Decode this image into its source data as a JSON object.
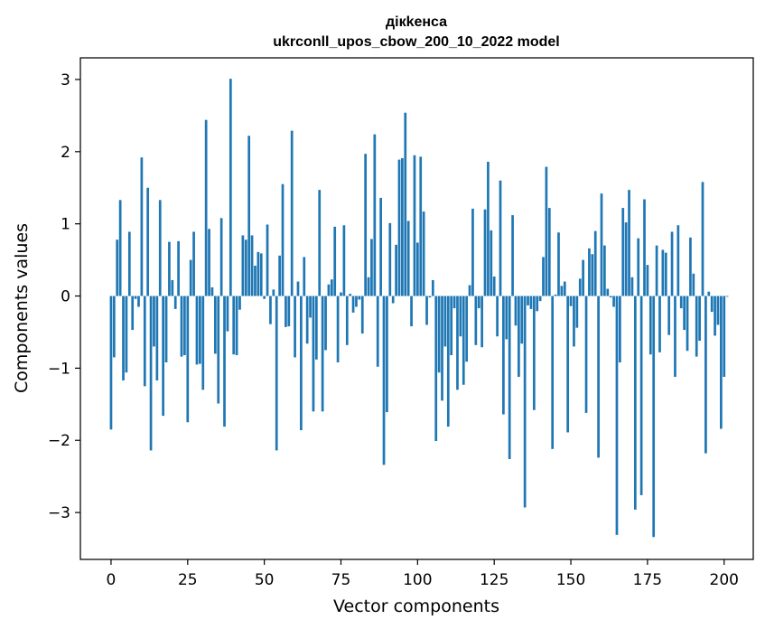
{
  "chart_data": {
    "type": "bar",
    "title": [
      "дікkенса",
      "ukrconll_upos_cbow_200_10_2022 model"
    ],
    "xlabel": "Vector components",
    "ylabel": "Components values",
    "xlim": [
      -10,
      209.5
    ],
    "ylim": [
      -3.65,
      3.3
    ],
    "xticks": [
      0,
      25,
      50,
      75,
      100,
      125,
      150,
      175,
      200
    ],
    "yticks": [
      -3,
      -2,
      -1,
      0,
      1,
      2,
      3
    ],
    "ytick_labels": [
      "−3",
      "−2",
      "−1",
      "0",
      "1",
      "2",
      "3"
    ],
    "grid": false,
    "bar_color": "#1f77b4",
    "values": [
      -1.85,
      -0.85,
      0.78,
      1.33,
      -1.17,
      -1.06,
      0.89,
      -0.47,
      -0.04,
      -0.15,
      1.92,
      -1.25,
      1.5,
      -2.14,
      -0.7,
      -1.17,
      1.33,
      -1.66,
      -0.92,
      0.75,
      0.22,
      -0.18,
      0.76,
      -0.84,
      -0.82,
      -1.75,
      0.5,
      0.89,
      -0.95,
      -0.94,
      -1.3,
      2.44,
      0.93,
      0.12,
      -0.8,
      -1.49,
      1.08,
      -1.81,
      -0.49,
      3.01,
      -0.81,
      -0.82,
      -0.19,
      0.84,
      0.78,
      2.22,
      0.84,
      0.42,
      0.61,
      0.59,
      -0.04,
      0.99,
      -0.39,
      0.09,
      -2.14,
      0.56,
      1.55,
      -0.43,
      -0.42,
      2.29,
      -0.85,
      0.2,
      -1.86,
      0.54,
      -0.66,
      -0.3,
      -1.6,
      -0.88,
      1.47,
      -1.6,
      -0.75,
      0.16,
      0.23,
      0.96,
      -0.92,
      0.05,
      0.98,
      -0.68,
      0.03,
      -0.23,
      -0.15,
      -0.05,
      -0.52,
      1.97,
      0.26,
      0.79,
      2.24,
      -0.98,
      1.36,
      -2.34,
      -1.61,
      1.01,
      -0.1,
      0.71,
      1.89,
      1.91,
      2.54,
      1.04,
      -0.42,
      1.95,
      0.74,
      1.93,
      1.17,
      -0.4,
      -0.02,
      0.22,
      -2.01,
      -1.06,
      -1.45,
      -0.7,
      -1.81,
      -0.82,
      -0.17,
      -1.3,
      -0.56,
      -1.23,
      -0.91,
      0.15,
      1.21,
      -0.68,
      -0.17,
      -0.71,
      1.2,
      1.86,
      0.91,
      0.27,
      -0.56,
      1.6,
      -1.64,
      -0.6,
      -2.26,
      1.12,
      -0.41,
      -1.12,
      -0.66,
      -2.93,
      -0.13,
      -0.18,
      -1.58,
      -0.21,
      -0.07,
      0.54,
      1.79,
      1.22,
      -2.12,
      0.02,
      0.88,
      0.14,
      0.2,
      -1.89,
      -0.14,
      -0.7,
      -0.44,
      0.24,
      0.5,
      -1.62,
      0.66,
      0.58,
      0.9,
      -2.24,
      1.42,
      0.7,
      0.1,
      -0.02,
      -0.15,
      -3.31,
      -0.92,
      1.22,
      1.02,
      1.47,
      0.26,
      -2.96,
      0.8,
      -2.76,
      1.34,
      0.43,
      -0.81,
      -3.34,
      0.7,
      -0.78,
      0.64,
      0.6,
      -0.54,
      0.89,
      -1.12,
      0.98,
      -0.17,
      -0.47,
      -0.76,
      0.81,
      0.31,
      -0.84,
      -0.62,
      1.58,
      -2.18,
      0.06,
      -0.22,
      -0.55,
      -0.4,
      -1.84,
      -1.12,
      -0.01
    ]
  }
}
